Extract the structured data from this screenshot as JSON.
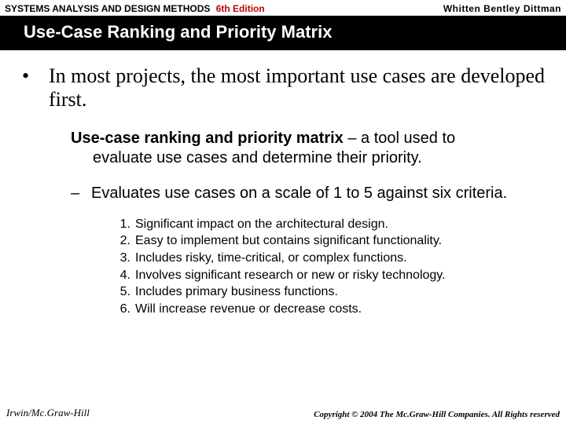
{
  "colors": {
    "background": "#ffffff",
    "titleband_bg": "#000000",
    "titleband_fg": "#ffffff",
    "edition_fg": "#c00000",
    "text": "#000000"
  },
  "header": {
    "book_title": "SYSTEMS ANALYSIS AND DESIGN METHODS",
    "edition": "6th Edition",
    "authors": "Whitten   Bentley   Dittman"
  },
  "title": "Use-Case Ranking and Priority Matrix",
  "body": {
    "bullet1": {
      "marker": "•",
      "text": "In most projects, the most important use cases are developed first."
    },
    "definition": {
      "term": "Use-case ranking and priority matrix",
      "dash": " – ",
      "text_line1": "a tool used to",
      "text_line2": "evaluate use cases and determine their priority."
    },
    "sub1": {
      "marker": "–",
      "text": "Evaluates use cases on a scale of 1 to 5 against six criteria."
    },
    "criteria": [
      "Significant impact on the architectural design.",
      "Easy to implement but contains significant functionality.",
      "Includes risky, time-critical, or complex functions.",
      "Involves significant research or new or risky technology.",
      "Includes primary business functions.",
      "Will increase revenue or decrease costs."
    ],
    "criteria_numbers": [
      "1.",
      "2.",
      "3.",
      "4.",
      "5.",
      "6."
    ]
  },
  "footer": {
    "publisher": "Irwin/Mc.Graw-Hill",
    "copyright": "Copyright © 2004 The Mc.Graw-Hill Companies. All Rights reserved"
  }
}
